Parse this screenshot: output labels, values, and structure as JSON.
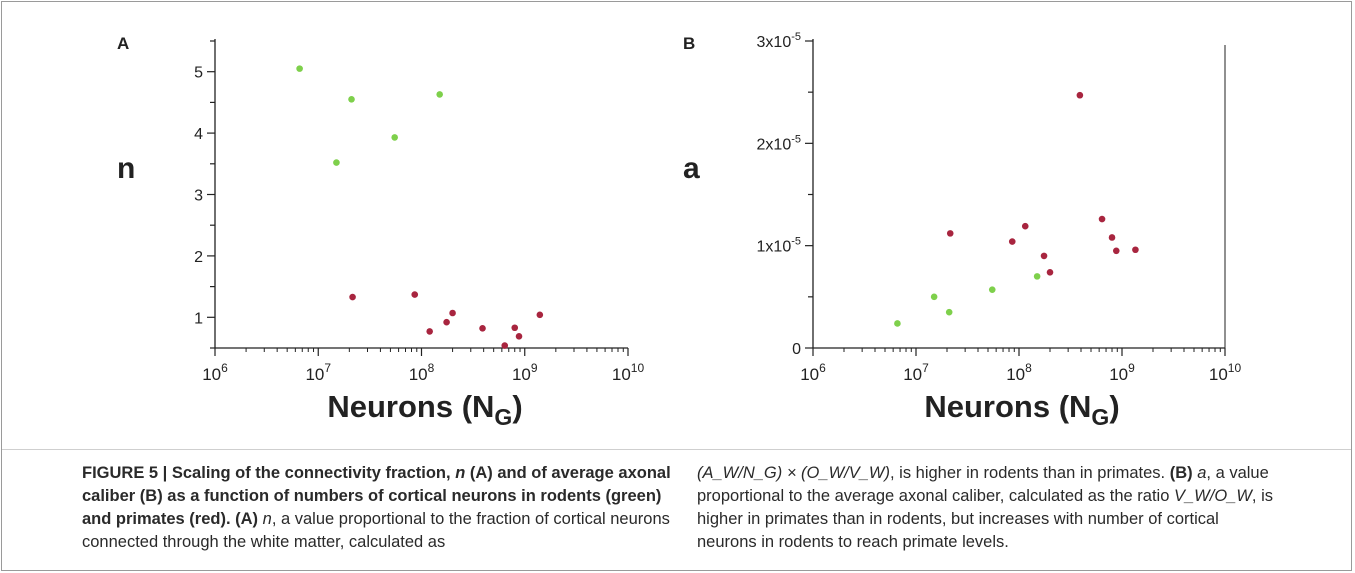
{
  "panels": {
    "A": {
      "label": "A",
      "ylabel": "n",
      "xlabel_main": "Neurons (N",
      "xlabel_sub": "G",
      "xlabel_close": ")",
      "yticks": [
        {
          "value": 1,
          "label": "1"
        },
        {
          "value": 2,
          "label": "2"
        },
        {
          "value": 3,
          "label": "3"
        },
        {
          "value": 4,
          "label": "4"
        },
        {
          "value": 5,
          "label": "5"
        }
      ],
      "xticks": [
        {
          "exp": 6,
          "base": "10",
          "sup": "6"
        },
        {
          "exp": 7,
          "base": "10",
          "sup": "7"
        },
        {
          "exp": 8,
          "base": "10",
          "sup": "8"
        },
        {
          "exp": 9,
          "base": "10",
          "sup": "9"
        },
        {
          "exp": 10,
          "base": "10",
          "sup": "10"
        }
      ]
    },
    "B": {
      "label": "B",
      "ylabel": "a",
      "xlabel_main": "Neurons (N",
      "xlabel_sub": "G",
      "xlabel_close": ")",
      "yticks": [
        {
          "value": 0,
          "label": "0"
        },
        {
          "value": 1e-05,
          "label": "1x10-5"
        },
        {
          "value": 2e-05,
          "label": "2x10-5"
        },
        {
          "value": 3e-05,
          "label": "3x10-5"
        }
      ],
      "xticks": [
        {
          "exp": 6,
          "base": "10",
          "sup": "6"
        },
        {
          "exp": 7,
          "base": "10",
          "sup": "7"
        },
        {
          "exp": 8,
          "base": "10",
          "sup": "8"
        },
        {
          "exp": 9,
          "base": "10",
          "sup": "9"
        },
        {
          "exp": 10,
          "base": "10",
          "sup": "10"
        }
      ]
    }
  },
  "colors": {
    "rodents": "#7ed04b",
    "primates": "#a8253f",
    "axis": "#222222"
  },
  "chart_data": [
    {
      "type": "scatter",
      "title": "A",
      "xlabel": "Neurons (NG)",
      "ylabel": "n",
      "xscale": "log",
      "xlim": [
        1000000.0,
        10000000000.0
      ],
      "ylim": [
        0.5,
        5.5
      ],
      "series": [
        {
          "color": "#7ed04b",
          "points": [
            {
              "x": 6600000.0,
              "y": 5.05
            },
            {
              "x": 15000000.0,
              "y": 3.52
            },
            {
              "x": 21000000.0,
              "y": 4.55
            },
            {
              "x": 55000000.0,
              "y": 3.93
            },
            {
              "x": 150000000.0,
              "y": 4.63
            }
          ]
        },
        {
          "color": "#a8253f",
          "points": [
            {
              "x": 21500000.0,
              "y": 1.33
            },
            {
              "x": 86000000.0,
              "y": 1.37
            },
            {
              "x": 120000000.0,
              "y": 0.77
            },
            {
              "x": 175000000.0,
              "y": 0.92
            },
            {
              "x": 200000000.0,
              "y": 1.07
            },
            {
              "x": 390000000.0,
              "y": 0.82
            },
            {
              "x": 640000000.0,
              "y": 0.54
            },
            {
              "x": 800000000.0,
              "y": 0.83
            },
            {
              "x": 880000000.0,
              "y": 0.69
            },
            {
              "x": 1400000000.0,
              "y": 1.04
            }
          ]
        }
      ]
    },
    {
      "type": "scatter",
      "title": "B",
      "xlabel": "Neurons (NG)",
      "ylabel": "a",
      "xscale": "log",
      "xlim": [
        1000000.0,
        10000000000.0
      ],
      "ylim": [
        0,
        3e-05
      ],
      "series": [
        {
          "color": "#7ed04b",
          "points": [
            {
              "x": 6600000.0,
              "y": 2.4e-06
            },
            {
              "x": 15000000.0,
              "y": 5e-06
            },
            {
              "x": 21000000.0,
              "y": 3.5e-06
            },
            {
              "x": 55000000.0,
              "y": 5.7e-06
            },
            {
              "x": 150000000.0,
              "y": 7e-06
            }
          ]
        },
        {
          "color": "#a8253f",
          "points": [
            {
              "x": 21500000.0,
              "y": 1.12e-05
            },
            {
              "x": 86000000.0,
              "y": 1.04e-05
            },
            {
              "x": 115000000.0,
              "y": 1.19e-05
            },
            {
              "x": 175000000.0,
              "y": 9e-06
            },
            {
              "x": 200000000.0,
              "y": 7.4e-06
            },
            {
              "x": 390000000.0,
              "y": 2.47e-05
            },
            {
              "x": 640000000.0,
              "y": 1.26e-05
            },
            {
              "x": 800000000.0,
              "y": 1.08e-05
            },
            {
              "x": 880000000.0,
              "y": 9.5e-06
            },
            {
              "x": 1350000000.0,
              "y": 9.6e-06
            }
          ]
        }
      ]
    }
  ],
  "caption": {
    "fig_label": "FIGURE 5 | Scaling of the connectivity fraction, ",
    "n_sym": "n",
    "mid1": " (A) and of average axonal caliber (B) as a function of numbers of cortical neurons in rodents (green) and primates (red).",
    "A_label": " (A) ",
    "A_text": ", a value proportional to the fraction of cortical neurons connected through the white matter, calculated as",
    "formula": "(A_W/N_G) × (O_W/V_W)",
    "right_text1": ", is higher in rodents than in primates.",
    "B_label": " (B) ",
    "a_sym": "a",
    "B_text": ", a value proportional to the average axonal caliber, calculated as the ratio ",
    "ratio": "V_W/O_W",
    "B_text2": ", is higher in primates than in rodents, but increases with number of cortical neurons in rodents to reach primate levels."
  }
}
